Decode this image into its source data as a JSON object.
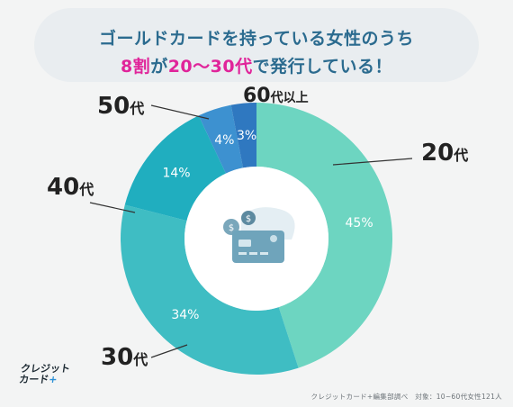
{
  "title": {
    "line1": "ゴールドカードを持っている女性のうち",
    "line2_prefix": "8割",
    "line2_mid": "が",
    "line2_highlight": "20〜30代",
    "line2_suffix": "で発行している！"
  },
  "colors": {
    "title": "#2b6b8f",
    "highlight": "#e0249a",
    "slices": [
      "#6dd5c1",
      "#3fbdc3",
      "#20aebf",
      "#3d91d0",
      "#2f78c0"
    ]
  },
  "chart_data": {
    "type": "pie",
    "donut": true,
    "categories": [
      "20代",
      "30代",
      "40代",
      "50代",
      "60代以上"
    ],
    "values": [
      45,
      34,
      14,
      4,
      3
    ],
    "value_labels": [
      "45%",
      "34%",
      "14%",
      "4%",
      "3%"
    ],
    "unit": "%"
  },
  "logo": {
    "line1": "クレジット",
    "line2": "カード",
    "plus": "+"
  },
  "source": "クレジットカード+編集部調べ　対象：10~60代女性121人"
}
